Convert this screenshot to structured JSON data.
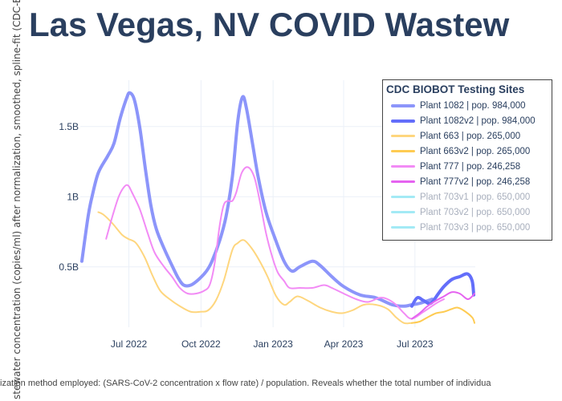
{
  "title": "Las Vegas, NV COVID Wastew",
  "footer": "ization method employed: (SARS-CoV-2 concentration x flow rate) / population. Reveals whether the total number of individua",
  "chart_data": {
    "type": "line",
    "title": "Las Vegas, NV COVID Wastew",
    "ylabel": "stewater concentration (copies/ml) after normalization, smoothed, spline-fit (CDC-Biobot d",
    "xlabel": "",
    "x_ticks": [
      "Jul 2022",
      "Oct 2022",
      "Jan 2023",
      "Apr 2023",
      "Jul 2023"
    ],
    "x_tick_dates": [
      "2022-07-01",
      "2022-10-01",
      "2023-01-01",
      "2023-04-01",
      "2023-07-01"
    ],
    "y_ticks": [
      "0.5B",
      "1B",
      "1.5B"
    ],
    "y_tick_values": [
      0.5,
      1.0,
      1.5
    ],
    "y_units": "billions of copies/ml",
    "xlim": [
      "2022-04-30",
      "2023-09-16"
    ],
    "ylim": [
      0.07,
      1.83
    ],
    "grid": true,
    "legend": {
      "title": "CDC BIOBOT Testing Sites",
      "placement": "top-right"
    },
    "series": [
      {
        "name": "Plant 1082 | pop. 984,000",
        "color": "#8c95fa",
        "width": 4,
        "visible": true,
        "x": [
          "2022-05-02",
          "2022-05-10",
          "2022-05-15",
          "2022-05-23",
          "2022-06-04",
          "2022-06-12",
          "2022-06-20",
          "2022-06-28",
          "2022-07-02",
          "2022-07-08",
          "2022-07-15",
          "2022-07-22",
          "2022-07-29",
          "2022-08-05",
          "2022-08-15",
          "2022-08-25",
          "2022-09-02",
          "2022-09-09",
          "2022-09-18",
          "2022-09-28",
          "2022-10-08",
          "2022-10-15",
          "2022-10-25",
          "2022-11-02",
          "2022-11-10",
          "2022-11-17",
          "2022-11-23",
          "2022-11-28",
          "2022-12-06",
          "2022-12-13",
          "2022-12-23",
          "2023-01-03",
          "2023-01-15",
          "2023-01-25",
          "2023-02-04",
          "2023-02-20",
          "2023-03-02",
          "2023-03-17",
          "2023-04-01",
          "2023-04-22",
          "2023-05-12",
          "2023-06-02",
          "2023-06-17",
          "2023-06-27",
          "2023-07-07",
          "2023-07-23"
        ],
        "y": [
          0.54,
          0.86,
          1.0,
          1.17,
          1.29,
          1.38,
          1.56,
          1.7,
          1.74,
          1.69,
          1.49,
          1.2,
          0.94,
          0.77,
          0.63,
          0.51,
          0.42,
          0.37,
          0.37,
          0.41,
          0.47,
          0.54,
          0.69,
          0.86,
          1.14,
          1.54,
          1.71,
          1.63,
          1.37,
          1.14,
          0.89,
          0.71,
          0.54,
          0.47,
          0.5,
          0.54,
          0.51,
          0.43,
          0.36,
          0.3,
          0.28,
          0.23,
          0.22,
          0.23,
          0.24,
          0.27
        ]
      },
      {
        "name": "Plant 1082v2 | pop. 984,000",
        "color": "#636efa",
        "width": 4,
        "visible": true,
        "x": [
          "2023-06-27",
          "2023-07-04",
          "2023-07-12",
          "2023-07-21",
          "2023-07-31",
          "2023-08-07",
          "2023-08-17",
          "2023-08-27",
          "2023-09-06",
          "2023-09-12",
          "2023-09-14"
        ],
        "y": [
          0.22,
          0.28,
          0.26,
          0.24,
          0.31,
          0.36,
          0.41,
          0.43,
          0.45,
          0.4,
          0.3
        ]
      },
      {
        "name": "Plant 663 | pop. 265,000",
        "color": "#fed67e",
        "width": 2,
        "visible": true,
        "x": [
          "2022-05-23",
          "2022-05-30",
          "2022-06-10",
          "2022-06-22",
          "2022-06-30",
          "2022-07-10",
          "2022-07-21",
          "2022-07-31",
          "2022-08-10",
          "2022-08-22",
          "2022-09-04",
          "2022-09-18",
          "2022-09-30",
          "2022-10-10",
          "2022-10-20",
          "2022-10-30",
          "2022-11-10",
          "2022-11-17",
          "2022-11-25",
          "2022-12-05",
          "2022-12-15",
          "2022-12-25",
          "2023-01-05",
          "2023-01-15",
          "2023-01-22",
          "2023-02-01",
          "2023-02-14",
          "2023-03-02",
          "2023-03-17",
          "2023-03-30",
          "2023-04-12",
          "2023-04-27",
          "2023-05-12",
          "2023-05-27",
          "2023-06-07",
          "2023-06-17",
          "2023-06-27"
        ],
        "y": [
          0.89,
          0.87,
          0.81,
          0.73,
          0.7,
          0.67,
          0.57,
          0.44,
          0.33,
          0.27,
          0.22,
          0.18,
          0.18,
          0.19,
          0.26,
          0.4,
          0.62,
          0.67,
          0.69,
          0.63,
          0.54,
          0.43,
          0.29,
          0.23,
          0.25,
          0.29,
          0.26,
          0.21,
          0.18,
          0.17,
          0.19,
          0.23,
          0.23,
          0.2,
          0.14,
          0.1,
          0.1
        ]
      },
      {
        "name": "Plant 663v2 | pop. 265,000",
        "color": "#fecb52",
        "width": 2,
        "visible": true,
        "x": [
          "2023-06-27",
          "2023-07-07",
          "2023-07-17",
          "2023-07-28",
          "2023-08-07",
          "2023-08-17",
          "2023-08-24",
          "2023-09-01",
          "2023-09-12",
          "2023-09-15"
        ],
        "y": [
          0.1,
          0.11,
          0.14,
          0.17,
          0.18,
          0.2,
          0.21,
          0.19,
          0.14,
          0.1
        ]
      },
      {
        "name": "Plant 777 | pop. 246,258",
        "color": "#f28bf5",
        "width": 2,
        "visible": true,
        "x": [
          "2022-06-02",
          "2022-06-10",
          "2022-06-18",
          "2022-06-25",
          "2022-06-30",
          "2022-07-05",
          "2022-07-15",
          "2022-07-25",
          "2022-08-03",
          "2022-08-15",
          "2022-08-25",
          "2022-09-04",
          "2022-09-14",
          "2022-09-25",
          "2022-10-05",
          "2022-10-12",
          "2022-10-18",
          "2022-10-25",
          "2022-10-30",
          "2022-11-04",
          "2022-11-10",
          "2022-11-15",
          "2022-11-22",
          "2022-11-30",
          "2022-12-08",
          "2022-12-15",
          "2022-12-23",
          "2022-12-31",
          "2023-01-07",
          "2023-01-15",
          "2023-01-22",
          "2023-02-04",
          "2023-02-20",
          "2023-03-07",
          "2023-03-17",
          "2023-04-01",
          "2023-04-17",
          "2023-05-02",
          "2023-05-17",
          "2023-05-27",
          "2023-06-07",
          "2023-06-17",
          "2023-06-27",
          "2023-07-12",
          "2023-07-28",
          "2023-08-07"
        ],
        "y": [
          0.7,
          0.86,
          1.0,
          1.07,
          1.08,
          1.03,
          0.91,
          0.74,
          0.6,
          0.5,
          0.43,
          0.35,
          0.31,
          0.31,
          0.33,
          0.37,
          0.51,
          0.8,
          0.94,
          0.97,
          0.97,
          1.03,
          1.17,
          1.21,
          1.14,
          0.97,
          0.74,
          0.57,
          0.46,
          0.4,
          0.35,
          0.35,
          0.35,
          0.37,
          0.35,
          0.31,
          0.27,
          0.25,
          0.28,
          0.27,
          0.23,
          0.17,
          0.13,
          0.18,
          0.24,
          0.27
        ]
      },
      {
        "name": "Plant 777v2 | pop. 246,258",
        "color": "#e563f0",
        "width": 2,
        "visible": true,
        "x": [
          "2023-06-27",
          "2023-07-07",
          "2023-07-17",
          "2023-07-28",
          "2023-08-07",
          "2023-08-17",
          "2023-08-27",
          "2023-09-06",
          "2023-09-12",
          "2023-09-15"
        ],
        "y": [
          0.13,
          0.17,
          0.22,
          0.26,
          0.29,
          0.32,
          0.31,
          0.27,
          0.29,
          0.31
        ]
      },
      {
        "name": "Plant 703v1 | pop. 650,000",
        "color": "#a3eaf5",
        "width": 2,
        "visible": false,
        "x": [],
        "y": []
      },
      {
        "name": "Plant 703v2 | pop. 650,000",
        "color": "#a3eaf5",
        "width": 2,
        "visible": false,
        "x": [],
        "y": []
      },
      {
        "name": "Plant 703v3 | pop. 650,000",
        "color": "#a3eaf5",
        "width": 2,
        "visible": false,
        "x": [],
        "y": []
      }
    ]
  }
}
